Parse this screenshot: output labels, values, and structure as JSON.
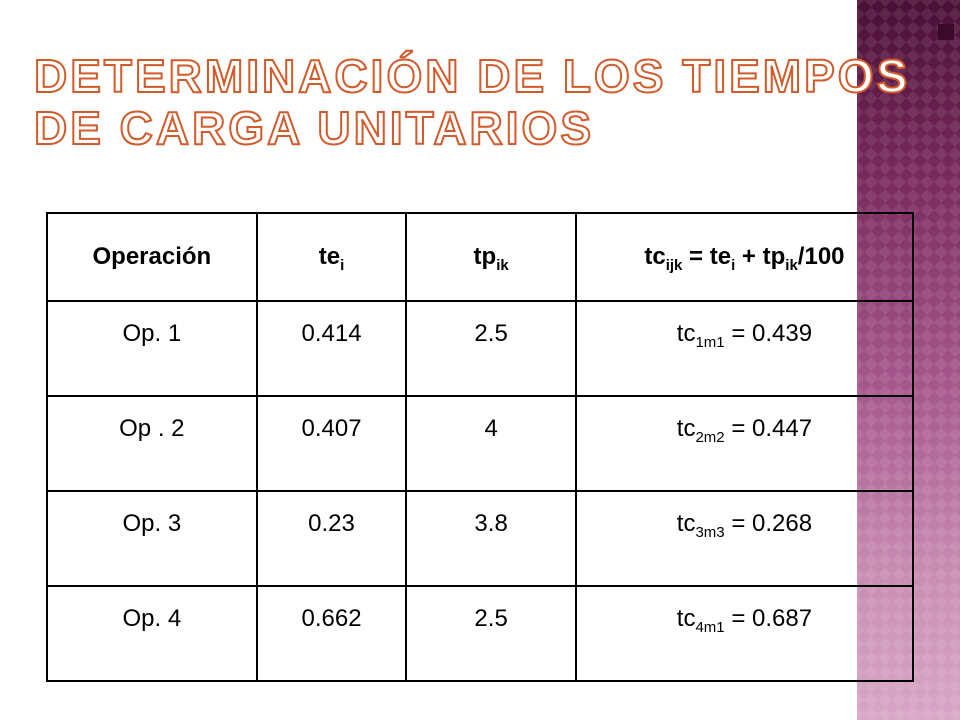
{
  "title": {
    "line1": "Determinación de los tiempos",
    "line2": "de carga unitarios"
  },
  "table": {
    "headers": [
      {
        "base": "Operación",
        "sub": ""
      },
      {
        "base": "te",
        "sub": "i"
      },
      {
        "base": "tp",
        "sub": "ik"
      },
      {
        "formula": {
          "a": "tc",
          "a_sub": "ijk",
          "b": " = te",
          "b_sub": "i",
          "c": " + tp",
          "c_sub": "ik",
          "d": "/100"
        }
      }
    ],
    "rows": [
      {
        "op": "Op. 1",
        "te": "0.414",
        "tp": "2.5",
        "tc": "tc",
        "tc_sub": "1m1",
        "tc_val": " = 0.439"
      },
      {
        "op": "Op . 2",
        "te": "0.407",
        "tp": "4",
        "tc": "tc",
        "tc_sub": "2m2",
        "tc_val": " = 0.447"
      },
      {
        "op": "Op. 3",
        "te": "0.23",
        "tp": "3.8",
        "tc": "tc",
        "tc_sub": "3m3",
        "tc_val": " = 0.268"
      },
      {
        "op": "Op. 4",
        "te": "0.662",
        "tp": "2.5",
        "tc": "tc",
        "tc_sub": "4m1",
        "tc_val": " = 0.687"
      }
    ]
  },
  "colors": {
    "title_outline": "#d35a2a",
    "side_band_top": "#4a1036",
    "side_band_bottom": "#d8a6c6"
  }
}
